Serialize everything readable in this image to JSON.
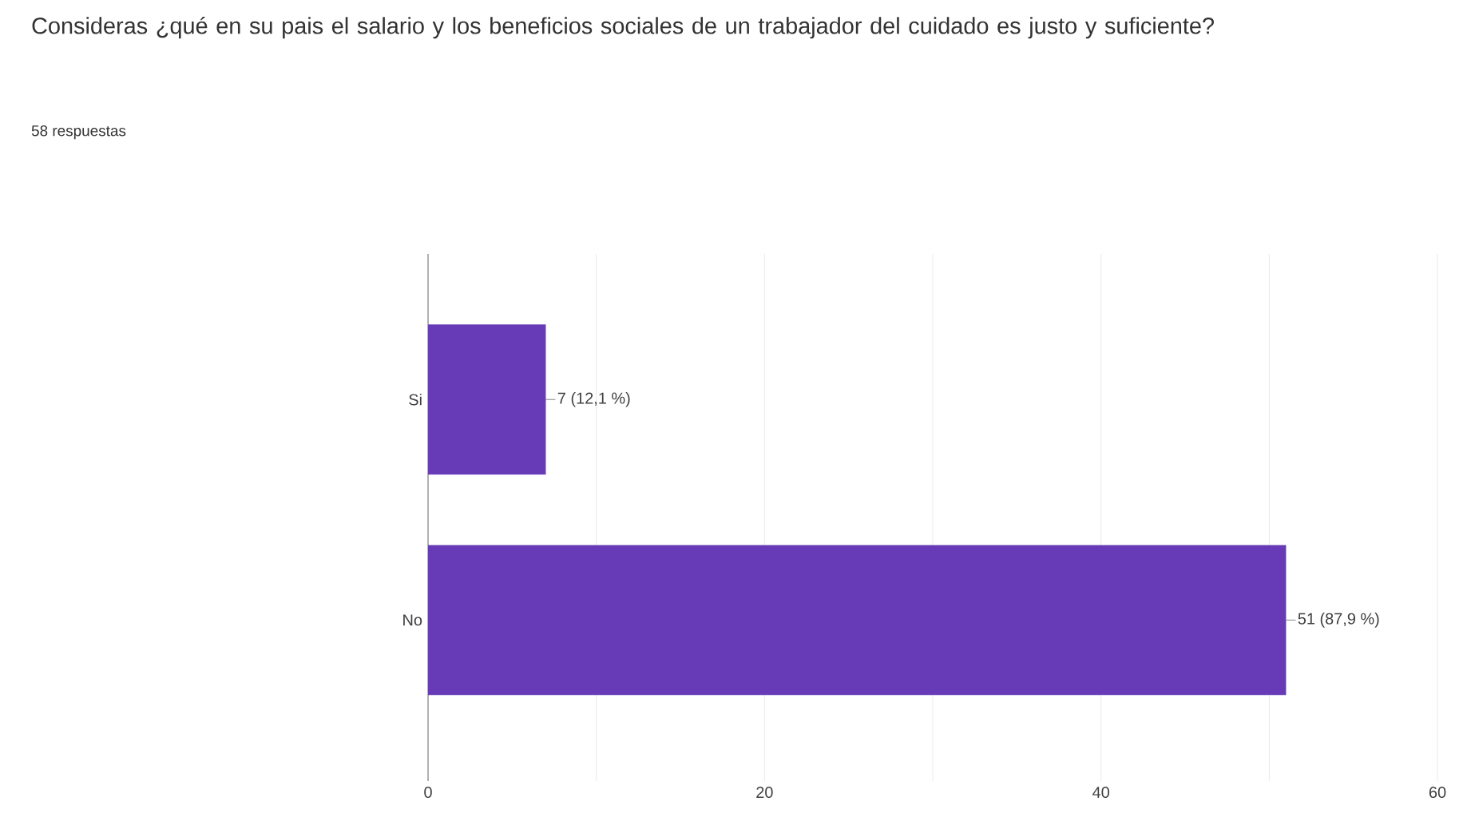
{
  "chart_data": {
    "type": "bar",
    "orientation": "horizontal",
    "title": "Consideras ¿qué en su pais el salario y los beneficios sociales de un trabajador del cuidado es justo y suficiente?",
    "subtitle": "58 respuestas",
    "categories": [
      "Si",
      "No"
    ],
    "values": [
      7,
      51
    ],
    "value_labels": [
      "7 (12,1 %)",
      "51 (87,9 %)"
    ],
    "color": "#673ab7",
    "xlim": [
      0,
      60
    ],
    "xticks": [
      0,
      {
        "value": 10,
        "label": null
      },
      20,
      {
        "value": 30,
        "label": null
      },
      40,
      {
        "value": 50,
        "label": null
      },
      60
    ],
    "grid": "x"
  }
}
